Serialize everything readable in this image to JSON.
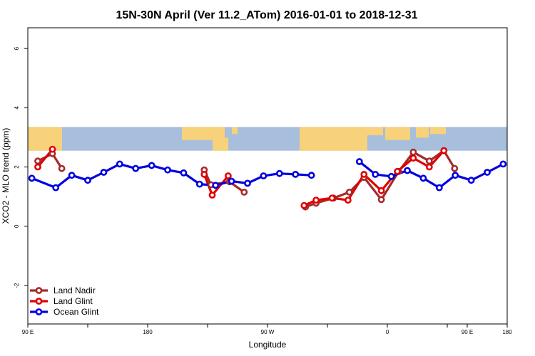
{
  "chart_data": {
    "type": "line",
    "title": "15N-30N April (Ver 11.2_ATom)   2016-01-01 to 2018-12-31",
    "xlabel": "Longitude",
    "ylabel": "XCO2 - MLO trend (ppm)",
    "x_range": [
      45,
      405
    ],
    "ylim": [
      -3.3,
      6.7
    ],
    "x_ticks": [
      {
        "value": 45,
        "label": "90 E"
      },
      {
        "value": 90,
        "label": ""
      },
      {
        "value": 135,
        "label": "180"
      },
      {
        "value": 180,
        "label": ""
      },
      {
        "value": 225,
        "label": "90 W"
      },
      {
        "value": 270,
        "label": ""
      },
      {
        "value": 315,
        "label": "0"
      },
      {
        "value": 360,
        "label": ""
      },
      {
        "value": 375,
        "label": "90 E"
      },
      {
        "value": 405,
        "label": "180"
      }
    ],
    "y_ticks": [
      {
        "value": -2,
        "label": "-2"
      },
      {
        "value": 0,
        "label": "0"
      },
      {
        "value": 2,
        "label": "2"
      },
      {
        "value": 4,
        "label": "4"
      },
      {
        "value": 6,
        "label": "6"
      }
    ],
    "map_band": {
      "y_from": 2.55,
      "y_to": 3.35,
      "ocean_color": "#a7bedd",
      "land_color": "#f7d27a"
    },
    "legend_position": "bottom-left",
    "series": [
      {
        "name": "Land Nadir",
        "color": "#a52a2a",
        "segments": [
          [
            [
              52.5,
              2.2
            ],
            [
              63.5,
              2.45
            ],
            [
              70.5,
              1.95
            ]
          ],
          [
            [
              177.5,
              1.9
            ],
            [
              182.5,
              1.4
            ],
            [
              196.5,
              1.5
            ],
            [
              207.5,
              1.15
            ]
          ],
          [
            [
              253.5,
              0.65
            ],
            [
              261.5,
              0.78
            ],
            [
              274.5,
              0.95
            ],
            [
              286.5,
              1.15
            ],
            [
              297.5,
              1.65
            ],
            [
              310.5,
              0.9
            ],
            [
              323.5,
              1.85
            ],
            [
              334.5,
              2.5
            ],
            [
              346.5,
              2.2
            ],
            [
              357.5,
              2.55
            ],
            [
              365.5,
              1.95
            ]
          ]
        ]
      },
      {
        "name": "Land Glint",
        "color": "#e00000",
        "segments": [
          [
            [
              52.5,
              2.0
            ],
            [
              63.5,
              2.6
            ]
          ],
          [
            [
              177.5,
              1.75
            ],
            [
              183.5,
              1.05
            ],
            [
              195.5,
              1.7
            ]
          ],
          [
            [
              252.5,
              0.7
            ],
            [
              261.5,
              0.88
            ],
            [
              273.5,
              0.95
            ],
            [
              285.5,
              0.88
            ],
            [
              297.5,
              1.75
            ],
            [
              310.5,
              1.2
            ],
            [
              322.5,
              1.85
            ],
            [
              334.5,
              2.3
            ],
            [
              346.5,
              2.0
            ],
            [
              357.5,
              2.55
            ]
          ]
        ]
      },
      {
        "name": "Ocean Glint",
        "color": "#0000e0",
        "segments": [
          [
            [
              48,
              1.62
            ],
            [
              66,
              1.3
            ],
            [
              78,
              1.72
            ],
            [
              90,
              1.55
            ],
            [
              102,
              1.82
            ],
            [
              114,
              2.1
            ],
            [
              126,
              1.95
            ],
            [
              138,
              2.05
            ],
            [
              150,
              1.9
            ],
            [
              162,
              1.8
            ],
            [
              174,
              1.42
            ],
            [
              186,
              1.38
            ],
            [
              198,
              1.52
            ],
            [
              210,
              1.45
            ],
            [
              222,
              1.7
            ],
            [
              234,
              1.78
            ],
            [
              246,
              1.75
            ],
            [
              258,
              1.72
            ]
          ],
          [
            [
              294,
              2.18
            ],
            [
              306,
              1.75
            ],
            [
              318,
              1.68
            ],
            [
              330,
              1.88
            ],
            [
              342,
              1.62
            ],
            [
              354,
              1.3
            ],
            [
              366,
              1.72
            ],
            [
              378,
              1.55
            ],
            [
              390,
              1.82
            ],
            [
              402,
              2.1
            ]
          ]
        ]
      }
    ]
  }
}
